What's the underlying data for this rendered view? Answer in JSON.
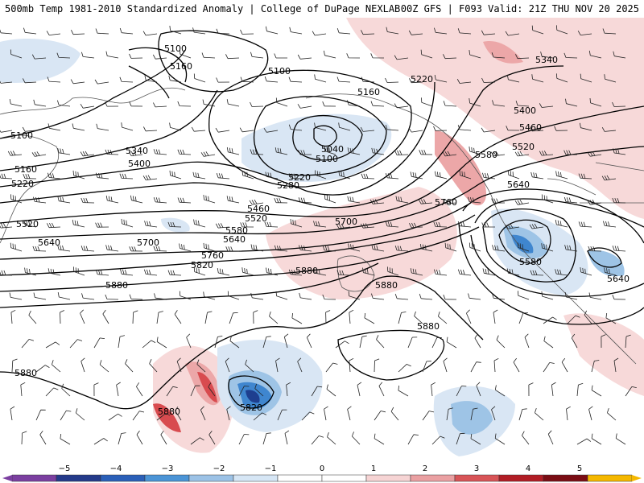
{
  "header": {
    "title": "500mb Temp 1981-2010 Standardized Anomaly | College of DuPage NEXLAB",
    "run_info": "00Z GFS | F093 Valid: 21Z THU NOV 20 2025"
  },
  "contours": {
    "line_color": "#000000",
    "labels": [
      "5100",
      "5160",
      "5100",
      "5220",
      "5160",
      "5340",
      "5400",
      "5460",
      "5520",
      "5100",
      "5160",
      "5220",
      "5340",
      "5400",
      "5040",
      "5100",
      "5220",
      "5280",
      "5580",
      "5640",
      "5760",
      "5460",
      "5520",
      "5580",
      "5640",
      "5700",
      "5520",
      "5640",
      "5700",
      "5760",
      "5820",
      "5880",
      "5880",
      "5880",
      "5880",
      "5580",
      "5640",
      "5880",
      "5880",
      "5820",
      "5880"
    ]
  },
  "colorbar": {
    "ticks": [
      "−5",
      "−4",
      "−3",
      "−2",
      "−1",
      "0",
      "1",
      "2",
      "3",
      "4",
      "5"
    ],
    "colors": [
      "#7b3fa0",
      "#243a8a",
      "#2a5fb8",
      "#4b94d6",
      "#9cc2e6",
      "#d6e6f5",
      "#ffffff",
      "#ffffff",
      "#f6d4d4",
      "#eaa0a2",
      "#d85457",
      "#b11d25",
      "#7a0d14",
      "#f5b800"
    ]
  },
  "anomaly_colors": {
    "warm_light": "#f7d9d9",
    "warm_mid": "#eca7a8",
    "warm_strong": "#d84b4f",
    "warm_max": "#a8131b",
    "cold_light": "#d9e6f4",
    "cold_mid": "#9ec4e6",
    "cold_strong": "#3f86cf",
    "cold_max": "#1e3f8f"
  },
  "icons": [
    "wind-barb-icon"
  ]
}
